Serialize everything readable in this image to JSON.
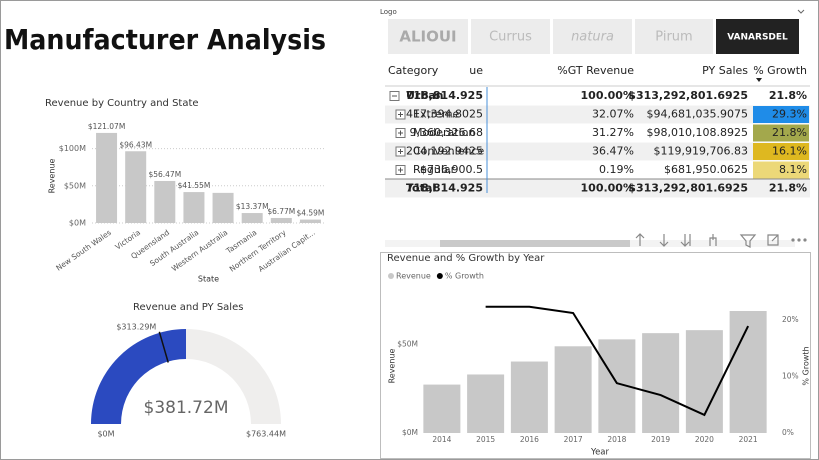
{
  "header": {
    "title": "Manufacturer Analysis"
  },
  "logo_slicer": {
    "label": "Logo",
    "items": [
      "ALIOUI",
      "Currus",
      "natura",
      "Pirum",
      "VANARSDEL"
    ]
  },
  "table": {
    "columns": [
      "Category",
      "ue",
      "%GT Revenue",
      "PY Sales",
      "% Growth"
    ],
    "rows": [
      {
        "cells": [
          "Urban",
          "718,814.925",
          "100.00%",
          "$313,292,801.6925",
          "21.8%"
        ]
      },
      {
        "cells": [
          "Extreme",
          "417,394.8025",
          "32.07%",
          "$94,681,035.9075",
          "29.3%"
        ],
        "color": "#1f8ce8"
      },
      {
        "cells": [
          "Moderation",
          "9,360,326.68",
          "31.27%",
          "$98,010,108.8925",
          "21.8%"
        ],
        "color": "#a3a84c"
      },
      {
        "cells": [
          "Convenience",
          "204,192.9425",
          "36.47%",
          "$119,919,706.83",
          "16.1%"
        ],
        "color": "#deb820"
      },
      {
        "cells": [
          "Regular",
          "$736,900.5",
          "0.19%",
          "$681,950.0625",
          "8.1%"
        ],
        "color": "#ecd878"
      },
      {
        "cells": [
          "Total",
          "718,814.925",
          "100.00%",
          "$313,292,801.6925",
          "21.8%"
        ]
      }
    ]
  },
  "chart_data": [
    {
      "type": "bar",
      "title": "Revenue by Country and State",
      "x_label": "State",
      "y_label": "Revenue",
      "categories": [
        "New South Wales",
        "Victoria",
        "Queensland",
        "South Australia",
        "Western Australia",
        "Tasmania",
        "Northern Territory",
        "Australian Capit..."
      ],
      "values": [
        121070000,
        96430000,
        56470000,
        41550000,
        40500000,
        13370000,
        6770000,
        4590000
      ],
      "value_labels": [
        "$121.07M",
        "$96.43M",
        "$56.47M",
        "$41.55M",
        null,
        "$13.37M",
        "$6.77M",
        "$4.59M"
      ],
      "color": "#c8c8c8",
      "ylim": [
        0,
        125000000
      ],
      "yticks": [
        {
          "value": 0,
          "label": "$0M"
        },
        {
          "value": 50000000,
          "label": "$50M"
        },
        {
          "value": 100000000,
          "label": "$100M"
        }
      ],
      "grid": true
    },
    {
      "type": "gauge",
      "title": "Revenue and PY Sales",
      "value": 381720000,
      "value_label": "$381.72M",
      "min": {
        "value": 0,
        "label": "$0M"
      },
      "max": {
        "value": 763440000,
        "label": "$763.44M"
      },
      "target": {
        "value": 313290000,
        "label": "$313.29M"
      },
      "color": "#2b4ac0",
      "track_color": "#efeeed"
    },
    {
      "type": "combo",
      "title": "Revenue and % Growth by Year",
      "x_label": "Year",
      "y_label": "Revenue",
      "y2_label": "% Growth",
      "categories": [
        "2014",
        "2015",
        "2016",
        "2017",
        "2018",
        "2019",
        "2020",
        "2021"
      ],
      "series": [
        {
          "name": "Revenue",
          "type": "bar",
          "color": "#c8c8c8",
          "values": [
            27300000,
            33000000,
            40300000,
            48900000,
            52800000,
            56300000,
            58000000,
            68800000
          ]
        },
        {
          "name": "% Growth",
          "type": "line",
          "axis": "y2",
          "color": "#000000",
          "values": [
            null,
            22.3,
            22.3,
            21.2,
            8.8,
            6.7,
            3.2,
            18.9
          ]
        }
      ],
      "ylim": [
        0,
        75000000
      ],
      "yticks": [
        {
          "value": 0,
          "label": "$0M"
        },
        {
          "value": 50000000,
          "label": "$50M"
        }
      ],
      "y2lim": [
        0,
        23.5
      ],
      "y2ticks": [
        {
          "value": 0,
          "label": "0%"
        },
        {
          "value": 10,
          "label": "10%"
        },
        {
          "value": 20,
          "label": "20%"
        }
      ]
    }
  ]
}
